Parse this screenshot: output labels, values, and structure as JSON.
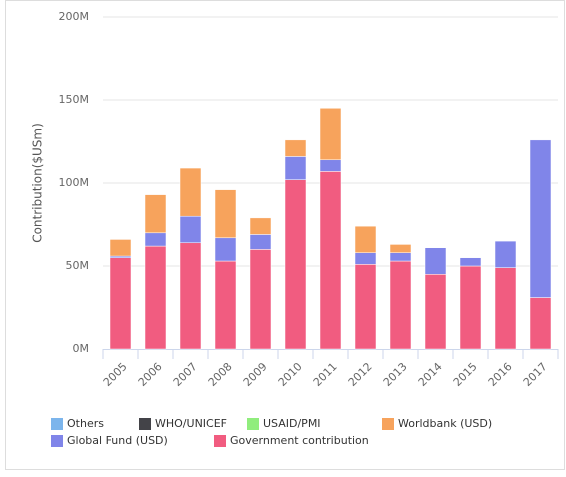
{
  "chart_data": {
    "type": "bar",
    "stacked": true,
    "y_label": "Contribution($USm)",
    "categories": [
      "2005",
      "2006",
      "2007",
      "2008",
      "2009",
      "2010",
      "2011",
      "2012",
      "2013",
      "2014",
      "2015",
      "2016",
      "2017"
    ],
    "series": [
      {
        "name": "Others",
        "color": "#7cb5ec",
        "values": [
          0,
          0,
          0,
          0,
          0,
          0,
          0,
          0,
          0,
          0,
          0,
          0,
          0
        ]
      },
      {
        "name": "WHO/UNICEF",
        "color": "#434348",
        "values": [
          0,
          0,
          0,
          0,
          0,
          0,
          0,
          0,
          0,
          0,
          0,
          0,
          0
        ]
      },
      {
        "name": "USAID/PMI",
        "color": "#90ed7d",
        "values": [
          0,
          0,
          0,
          0,
          0,
          0,
          0,
          0,
          0,
          0,
          0,
          0,
          0
        ]
      },
      {
        "name": "Worldbank (USD)",
        "color": "#f7a35c",
        "values": [
          10,
          23,
          29,
          29,
          10,
          10,
          31,
          16,
          5,
          0,
          0,
          0,
          0
        ]
      },
      {
        "name": "Global Fund (USD)",
        "color": "#8085e9",
        "values": [
          1,
          8,
          16,
          14,
          9,
          14,
          7,
          7,
          5,
          16,
          5,
          16,
          95
        ]
      },
      {
        "name": "Government contribution",
        "color": "#f15c80",
        "values": [
          55,
          62,
          64,
          53,
          60,
          102,
          107,
          51,
          53,
          45,
          50,
          49,
          31
        ]
      }
    ],
    "ylim": [
      0,
      200
    ],
    "yticks": [
      {
        "value": 0,
        "label": "0M"
      },
      {
        "value": 50,
        "label": "50M"
      },
      {
        "value": 100,
        "label": "100M"
      },
      {
        "value": 150,
        "label": "150M"
      },
      {
        "value": 200,
        "label": "200M"
      }
    ],
    "grid": true,
    "legend": "bottom"
  }
}
